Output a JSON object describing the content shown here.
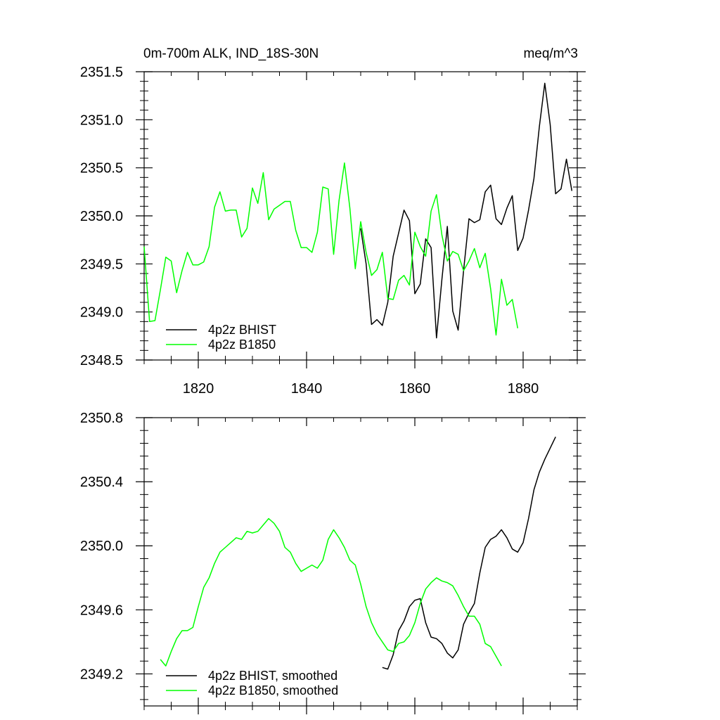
{
  "chart_data": [
    {
      "type": "line",
      "title": "0m-700m ALK, IND_18S-30N",
      "units": "meq/m^3",
      "xlim": [
        1810,
        1890
      ],
      "ylim": [
        2348.5,
        2351.5
      ],
      "xticks": [
        1820,
        1840,
        1860,
        1880
      ],
      "xtick_labels": [
        "1820",
        "1840",
        "1860",
        "1880"
      ],
      "yticks": [
        2348.5,
        2349.0,
        2349.5,
        2350.0,
        2350.5,
        2351.0,
        2351.5
      ],
      "ytick_labels": [
        "2348.5",
        "2349.0",
        "2349.5",
        "2350.0",
        "2350.5",
        "2351.0",
        "2351.5"
      ],
      "legend_position": "bottom-left",
      "series": [
        {
          "name": "4p2z BHIST",
          "color": "#000000",
          "x": [
            1850,
            1851,
            1852,
            1853,
            1854,
            1855,
            1856,
            1857,
            1858,
            1859,
            1860,
            1861,
            1862,
            1863,
            1864,
            1865,
            1866,
            1867,
            1868,
            1869,
            1870,
            1871,
            1872,
            1873,
            1874,
            1875,
            1876,
            1877,
            1878,
            1879,
            1880,
            1881,
            1882,
            1883,
            1884,
            1885,
            1886,
            1887,
            1888,
            1889
          ],
          "y": [
            2349.87,
            2349.5,
            2348.87,
            2348.92,
            2348.86,
            2349.1,
            2349.58,
            2349.82,
            2350.06,
            2349.95,
            2349.19,
            2349.29,
            2349.76,
            2349.67,
            2348.73,
            2349.34,
            2349.89,
            2349.01,
            2348.81,
            2349.43,
            2349.97,
            2349.93,
            2349.96,
            2350.25,
            2350.32,
            2349.97,
            2349.91,
            2350.08,
            2350.21,
            2349.64,
            2349.77,
            2350.06,
            2350.39,
            2350.93,
            2351.38,
            2350.95,
            2350.23,
            2350.28,
            2350.59,
            2350.26
          ]
        },
        {
          "name": "4p2z B1850",
          "color": "#00ff00",
          "x": [
            1810,
            1811,
            1812,
            1813,
            1814,
            1815,
            1816,
            1817,
            1818,
            1819,
            1820,
            1821,
            1822,
            1823,
            1824,
            1825,
            1826,
            1827,
            1828,
            1829,
            1830,
            1831,
            1832,
            1833,
            1834,
            1835,
            1836,
            1837,
            1838,
            1839,
            1840,
            1841,
            1842,
            1843,
            1844,
            1845,
            1846,
            1847,
            1848,
            1849,
            1850,
            1851,
            1852,
            1853,
            1854,
            1855,
            1856,
            1857,
            1858,
            1859,
            1860,
            1861,
            1862,
            1863,
            1864,
            1865,
            1866,
            1867,
            1868,
            1869,
            1870,
            1871,
            1872,
            1873,
            1874,
            1875,
            1876,
            1877,
            1878,
            1879
          ],
          "y": [
            2349.68,
            2348.9,
            2348.91,
            2349.23,
            2349.57,
            2349.53,
            2349.2,
            2349.43,
            2349.62,
            2349.49,
            2349.49,
            2349.52,
            2349.68,
            2350.09,
            2350.25,
            2350.05,
            2350.06,
            2350.06,
            2349.78,
            2349.87,
            2350.29,
            2350.13,
            2350.45,
            2349.96,
            2350.07,
            2350.11,
            2350.15,
            2350.15,
            2349.85,
            2349.67,
            2349.67,
            2349.62,
            2349.83,
            2350.3,
            2350.28,
            2349.6,
            2350.16,
            2350.55,
            2350.08,
            2349.45,
            2349.94,
            2349.62,
            2349.38,
            2349.44,
            2349.62,
            2349.14,
            2349.13,
            2349.33,
            2349.38,
            2349.28,
            2349.83,
            2349.68,
            2349.58,
            2350.05,
            2350.22,
            2349.8,
            2349.53,
            2349.63,
            2349.6,
            2349.43,
            2349.53,
            2349.66,
            2349.46,
            2349.61,
            2349.24,
            2348.76,
            2349.34,
            2349.07,
            2349.13,
            2348.83
          ]
        }
      ]
    },
    {
      "type": "line",
      "title": "",
      "xlim": [
        1810,
        1890
      ],
      "ylim": [
        2349.0,
        2350.8
      ],
      "xticks": [
        1820,
        1840,
        1860,
        1880
      ],
      "yticks": [
        2349.2,
        2349.6,
        2350.0,
        2350.4,
        2350.8
      ],
      "ytick_labels": [
        "2349.2",
        "2349.6",
        "2350.0",
        "2350.4",
        "2350.8"
      ],
      "legend_position": "bottom-left",
      "series": [
        {
          "name": "4p2z BHIST, smoothed",
          "color": "#000000",
          "x": [
            1854,
            1855,
            1856,
            1857,
            1858,
            1859,
            1860,
            1861,
            1862,
            1863,
            1864,
            1865,
            1866,
            1867,
            1868,
            1869,
            1870,
            1871,
            1872,
            1873,
            1874,
            1875,
            1876,
            1877,
            1878,
            1879,
            1880,
            1881,
            1882,
            1883,
            1884,
            1885,
            1886
          ],
          "y": [
            2349.24,
            2349.23,
            2349.32,
            2349.47,
            2349.53,
            2349.62,
            2349.66,
            2349.67,
            2349.52,
            2349.43,
            2349.42,
            2349.39,
            2349.33,
            2349.3,
            2349.35,
            2349.51,
            2349.58,
            2349.64,
            2349.83,
            2349.99,
            2350.04,
            2350.06,
            2350.1,
            2350.05,
            2349.98,
            2349.96,
            2350.02,
            2350.17,
            2350.35,
            2350.46,
            2350.54,
            2350.61,
            2350.68
          ]
        },
        {
          "name": "4p2z B1850, smoothed",
          "color": "#00ff00",
          "x": [
            1813,
            1814,
            1815,
            1816,
            1817,
            1818,
            1819,
            1820,
            1821,
            1822,
            1823,
            1824,
            1825,
            1826,
            1827,
            1828,
            1829,
            1830,
            1831,
            1832,
            1833,
            1834,
            1835,
            1836,
            1837,
            1838,
            1839,
            1840,
            1841,
            1842,
            1843,
            1844,
            1845,
            1846,
            1847,
            1848,
            1849,
            1850,
            1851,
            1852,
            1853,
            1854,
            1855,
            1856,
            1857,
            1858,
            1859,
            1860,
            1861,
            1862,
            1863,
            1864,
            1865,
            1866,
            1867,
            1868,
            1869,
            1870,
            1871,
            1872,
            1873,
            1874,
            1875,
            1876
          ],
          "y": [
            2349.29,
            2349.25,
            2349.34,
            2349.42,
            2349.47,
            2349.47,
            2349.49,
            2349.62,
            2349.74,
            2349.8,
            2349.89,
            2349.96,
            2349.99,
            2350.02,
            2350.05,
            2350.04,
            2350.09,
            2350.08,
            2350.09,
            2350.13,
            2350.17,
            2350.14,
            2350.09,
            2349.99,
            2349.96,
            2349.89,
            2349.84,
            2349.86,
            2349.88,
            2349.86,
            2349.91,
            2350.04,
            2350.1,
            2350.05,
            2349.99,
            2349.91,
            2349.88,
            2349.76,
            2349.62,
            2349.52,
            2349.45,
            2349.4,
            2349.35,
            2349.34,
            2349.39,
            2349.4,
            2349.44,
            2349.52,
            2349.64,
            2349.73,
            2349.77,
            2349.8,
            2349.78,
            2349.77,
            2349.75,
            2349.69,
            2349.62,
            2349.56,
            2349.56,
            2349.51,
            2349.39,
            2349.37,
            2349.31,
            2349.25
          ]
        }
      ]
    }
  ]
}
